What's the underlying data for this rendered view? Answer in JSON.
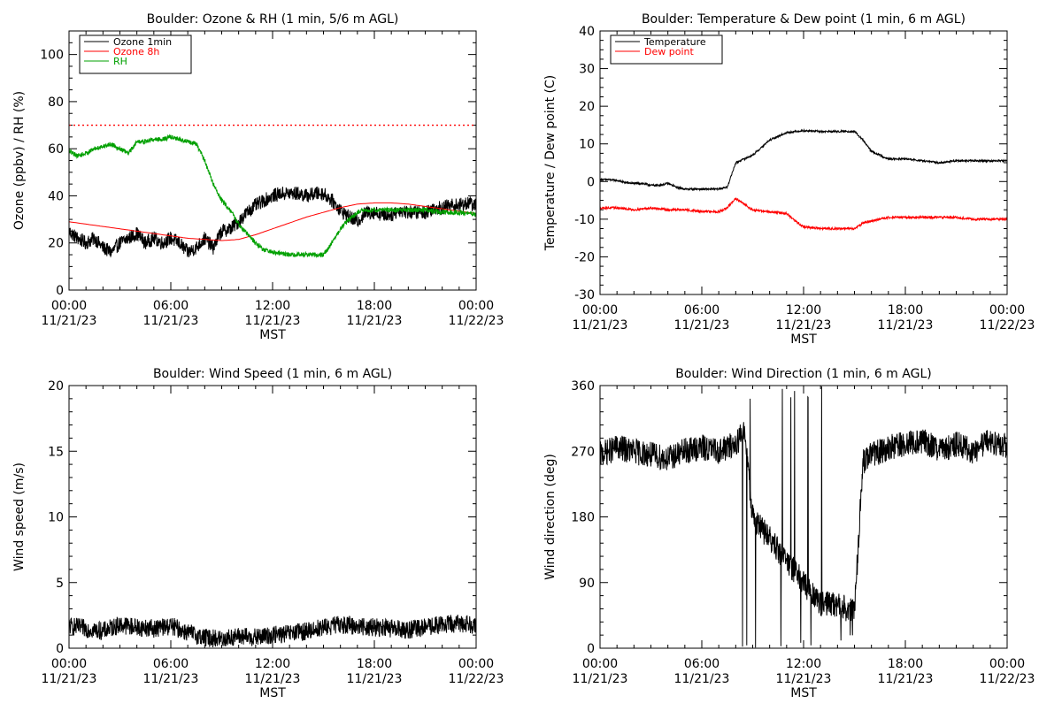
{
  "colors": {
    "black": "#000000",
    "red": "#ff0000",
    "green": "#00a000"
  },
  "chart_data": [
    {
      "id": "ozone-rh",
      "type": "line",
      "title": "Boulder: Ozone & RH (1 min, 5/6 m AGL)",
      "xlabel": "MST",
      "ylabel": "Ozone (ppbv) / RH (%)",
      "xlim": [
        0,
        24
      ],
      "ylim": [
        0,
        110
      ],
      "ymajor": [
        0,
        20,
        40,
        60,
        80,
        100
      ],
      "yminor_step": 5,
      "xticks": [
        {
          "x": 0,
          "time": "00:00",
          "date": "11/21/23"
        },
        {
          "x": 6,
          "time": "06:00",
          "date": "11/21/23"
        },
        {
          "x": 12,
          "time": "12:00",
          "date": "11/21/23"
        },
        {
          "x": 18,
          "time": "18:00",
          "date": "11/21/23"
        },
        {
          "x": 24,
          "time": "00:00",
          "date": "11/22/23"
        }
      ],
      "legend": {
        "position": "top-left"
      },
      "hlines": [
        {
          "y": 70,
          "color": "#ff0000",
          "style": "dotted"
        }
      ],
      "series": [
        {
          "name": "Ozone 1min",
          "color": "#000000",
          "noisy": true,
          "noise": 3,
          "x": [
            0,
            0.5,
            1,
            1.5,
            2,
            2.5,
            3,
            3.5,
            4,
            4.5,
            5,
            5.5,
            6,
            6.5,
            7,
            7.5,
            8,
            8.5,
            9,
            9.5,
            10,
            10.5,
            11,
            11.5,
            12,
            12.5,
            13,
            13.5,
            14,
            14.5,
            15,
            15.5,
            16,
            16.5,
            17,
            17.5,
            18,
            18.5,
            19,
            19.5,
            20,
            20.5,
            21,
            21.5,
            22,
            22.5,
            23,
            23.5,
            24
          ],
          "y": [
            25,
            22,
            20,
            22,
            18,
            16,
            20,
            22,
            24,
            20,
            22,
            20,
            22,
            20,
            16,
            18,
            22,
            18,
            25,
            26,
            29,
            33,
            36,
            38,
            40,
            41,
            41,
            41,
            40,
            41,
            41,
            38,
            34,
            31,
            29,
            33,
            33,
            32,
            32,
            34,
            33,
            33,
            33,
            35,
            35,
            36,
            36,
            37,
            36
          ]
        },
        {
          "name": "Ozone 8h",
          "color": "#ff0000",
          "noisy": false,
          "x": [
            0,
            1,
            2,
            3,
            4,
            5,
            6,
            7,
            8,
            9,
            10,
            11,
            12,
            13,
            14,
            15,
            16,
            17,
            18,
            19,
            20,
            21,
            22,
            23,
            24
          ],
          "y": [
            29,
            28,
            27,
            26,
            25,
            24,
            23,
            22,
            21.5,
            21,
            21.5,
            23.5,
            26,
            28.5,
            31,
            33,
            35,
            36.5,
            37,
            37,
            36.5,
            35.5,
            34.5,
            33.5,
            32.5
          ]
        },
        {
          "name": "RH",
          "color": "#00a000",
          "noisy": true,
          "noise": 1,
          "x": [
            0,
            0.5,
            1,
            1.5,
            2,
            2.5,
            3,
            3.5,
            4,
            4.5,
            5,
            5.5,
            6,
            6.5,
            7,
            7.5,
            8,
            8.5,
            9,
            9.5,
            10,
            10.5,
            11,
            11.5,
            12,
            13,
            14,
            15,
            15.5,
            16,
            16.5,
            17,
            17.5,
            18,
            19,
            20,
            21,
            22,
            23,
            24
          ],
          "y": [
            59,
            57,
            58,
            60,
            61,
            62,
            60,
            58,
            63,
            63,
            64,
            64,
            65,
            64,
            63,
            62,
            55,
            45,
            38,
            34,
            28,
            24,
            20,
            17,
            16,
            15,
            15,
            15,
            20,
            26,
            30,
            33,
            34,
            34,
            34,
            34,
            34,
            33,
            33,
            32
          ]
        }
      ]
    },
    {
      "id": "temp-dew",
      "type": "line",
      "title": "Boulder: Temperature & Dew point (1 min, 6 m AGL)",
      "xlabel": "MST",
      "ylabel": "Temperature / Dew point (C)",
      "xlim": [
        0,
        24
      ],
      "ylim": [
        -30,
        40
      ],
      "ymajor": [
        -30,
        -20,
        -10,
        0,
        10,
        20,
        30,
        40
      ],
      "yminor_step": 2.5,
      "xticks": [
        {
          "x": 0,
          "time": "00:00",
          "date": "11/21/23"
        },
        {
          "x": 6,
          "time": "06:00",
          "date": "11/21/23"
        },
        {
          "x": 12,
          "time": "12:00",
          "date": "11/21/23"
        },
        {
          "x": 18,
          "time": "18:00",
          "date": "11/21/23"
        },
        {
          "x": 24,
          "time": "00:00",
          "date": "11/22/23"
        }
      ],
      "legend": {
        "position": "top-left"
      },
      "hlines": [],
      "series": [
        {
          "name": "Temperature",
          "color": "#000000",
          "noisy": true,
          "noise": 0.25,
          "x": [
            0,
            0.5,
            1,
            1.5,
            2,
            2.5,
            3,
            3.5,
            4,
            4.5,
            5,
            5.5,
            6,
            6.5,
            7,
            7.5,
            8,
            8.5,
            9,
            9.5,
            10,
            10.5,
            11,
            11.5,
            12,
            13,
            14,
            15,
            15.5,
            16,
            16.5,
            17,
            18,
            19,
            20,
            21,
            22,
            23,
            24
          ],
          "y": [
            0.5,
            0.5,
            0.3,
            -0.3,
            -0.5,
            -0.5,
            -1,
            -1,
            -0.5,
            -1.5,
            -2,
            -2,
            -2,
            -2,
            -2,
            -1.5,
            5,
            6,
            7,
            9,
            11,
            12,
            13,
            13.3,
            13.5,
            13.3,
            13.3,
            13.3,
            11,
            8,
            7,
            6,
            6,
            5.5,
            5,
            5.5,
            5.5,
            5.5,
            5.5
          ]
        },
        {
          "name": "Dew point",
          "color": "#ff0000",
          "noisy": true,
          "noise": 0.3,
          "x": [
            0,
            1,
            2,
            3,
            4,
            5,
            6,
            7,
            7.5,
            8,
            8.5,
            9,
            10,
            11,
            11.5,
            12,
            13,
            14,
            15,
            15.5,
            16,
            17,
            18,
            19,
            20,
            21,
            22,
            23,
            24
          ],
          "y": [
            -7,
            -7,
            -7.5,
            -7,
            -7.5,
            -7.5,
            -8,
            -8,
            -7,
            -4.5,
            -6,
            -7.5,
            -8,
            -8.5,
            -10.5,
            -12,
            -12.5,
            -12.5,
            -12.5,
            -11,
            -10.5,
            -9.5,
            -9.5,
            -9.5,
            -9.5,
            -9.5,
            -10,
            -10,
            -10
          ]
        }
      ]
    },
    {
      "id": "wind-speed",
      "type": "line",
      "title": "Boulder: Wind Speed (1 min, 6 m AGL)",
      "xlabel": "MST",
      "ylabel": "Wind speed (m/s)",
      "xlim": [
        0,
        24
      ],
      "ylim": [
        0,
        20
      ],
      "ymajor": [
        0,
        5,
        10,
        15,
        20
      ],
      "yminor_step": 1,
      "xticks": [
        {
          "x": 0,
          "time": "00:00",
          "date": "11/21/23"
        },
        {
          "x": 6,
          "time": "06:00",
          "date": "11/21/23"
        },
        {
          "x": 12,
          "time": "12:00",
          "date": "11/21/23"
        },
        {
          "x": 18,
          "time": "18:00",
          "date": "11/21/23"
        },
        {
          "x": 24,
          "time": "00:00",
          "date": "11/22/23"
        }
      ],
      "legend": null,
      "hlines": [],
      "series": [
        {
          "name": "",
          "color": "#000000",
          "noisy": true,
          "noise": 0.7,
          "floor": 0,
          "x": [
            0,
            1,
            2,
            3,
            4,
            5,
            6,
            7,
            8,
            9,
            10,
            11,
            12,
            13,
            14,
            15,
            16,
            17,
            18,
            19,
            20,
            21,
            22,
            23,
            24
          ],
          "y": [
            1.7,
            1.5,
            1.3,
            1.8,
            1.6,
            1.5,
            1.7,
            1.2,
            0.8,
            0.7,
            0.9,
            0.8,
            1.0,
            1.1,
            1.3,
            1.6,
            1.8,
            1.7,
            1.6,
            1.5,
            1.4,
            1.6,
            1.8,
            1.9,
            1.8
          ]
        }
      ]
    },
    {
      "id": "wind-dir",
      "type": "line",
      "title": "Boulder: Wind Direction (1 min, 6 m AGL)",
      "xlabel": "MST",
      "ylabel": "Wind direction (deg)",
      "xlim": [
        0,
        24
      ],
      "ylim": [
        0,
        360
      ],
      "ymajor": [
        0,
        90,
        180,
        270,
        360
      ],
      "yminor_step": 18,
      "xticks": [
        {
          "x": 0,
          "time": "00:00",
          "date": "11/21/23"
        },
        {
          "x": 6,
          "time": "06:00",
          "date": "11/21/23"
        },
        {
          "x": 12,
          "time": "12:00",
          "date": "11/21/23"
        },
        {
          "x": 18,
          "time": "18:00",
          "date": "11/21/23"
        },
        {
          "x": 24,
          "time": "00:00",
          "date": "11/22/23"
        }
      ],
      "legend": null,
      "hlines": [],
      "series": [
        {
          "name": "",
          "color": "#000000",
          "noisy": true,
          "noise": 18,
          "wrap": [
            8.2,
            15.3
          ],
          "floor": 0,
          "ceil": 360,
          "x": [
            0,
            1,
            2,
            3,
            4,
            5,
            6,
            7,
            8,
            8.5,
            9,
            10,
            11,
            12,
            13,
            14,
            15,
            15.5,
            16,
            17,
            18,
            19,
            20,
            21,
            22,
            23,
            24
          ],
          "y": [
            265,
            275,
            270,
            265,
            260,
            270,
            275,
            270,
            280,
            300,
            180,
            150,
            120,
            90,
            60,
            60,
            50,
            255,
            265,
            275,
            280,
            285,
            270,
            280,
            270,
            285,
            275
          ]
        }
      ]
    }
  ]
}
